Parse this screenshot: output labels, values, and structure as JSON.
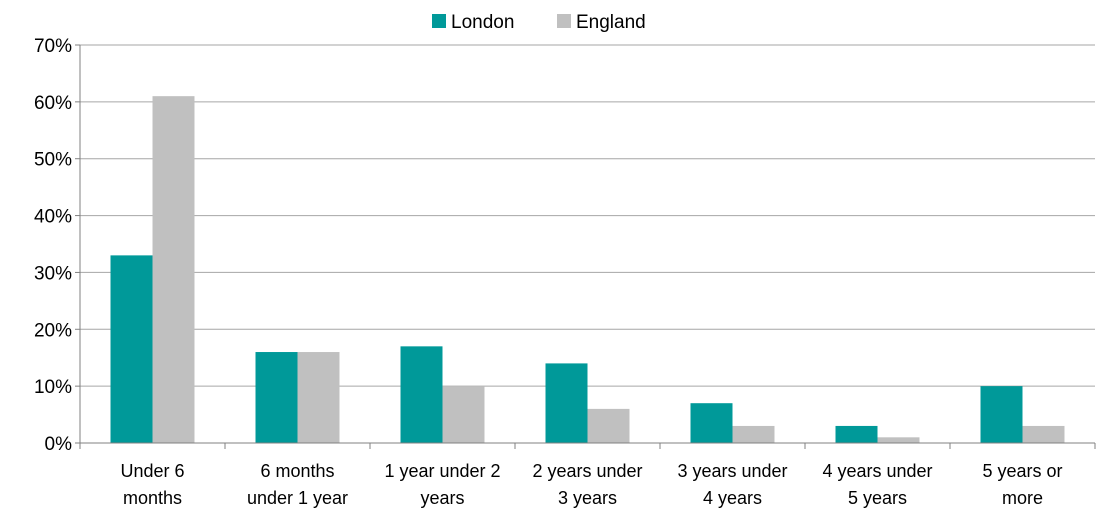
{
  "chart_data": {
    "type": "bar",
    "categories": [
      [
        "Under 6",
        "months"
      ],
      [
        "6 months",
        "under 1 year"
      ],
      [
        "1 year under 2",
        "years"
      ],
      [
        "2 years under",
        "3 years"
      ],
      [
        "3 years under",
        "4 years"
      ],
      [
        "4 years under",
        "5 years"
      ],
      [
        "5 years or",
        "more"
      ]
    ],
    "series": [
      {
        "name": "London",
        "color": "#009999",
        "values": [
          33,
          16,
          17,
          14,
          7,
          3,
          10
        ]
      },
      {
        "name": "England",
        "color": "#C0C0C0",
        "values": [
          61,
          16,
          10,
          6,
          3,
          1,
          3
        ]
      }
    ],
    "ylim": [
      0,
      70
    ],
    "yticks": [
      0,
      10,
      20,
      30,
      40,
      50,
      60,
      70
    ],
    "ytick_labels": [
      "0%",
      "10%",
      "20%",
      "30%",
      "40%",
      "50%",
      "60%",
      "70%"
    ],
    "grid": true,
    "legend_position": "top-center"
  }
}
